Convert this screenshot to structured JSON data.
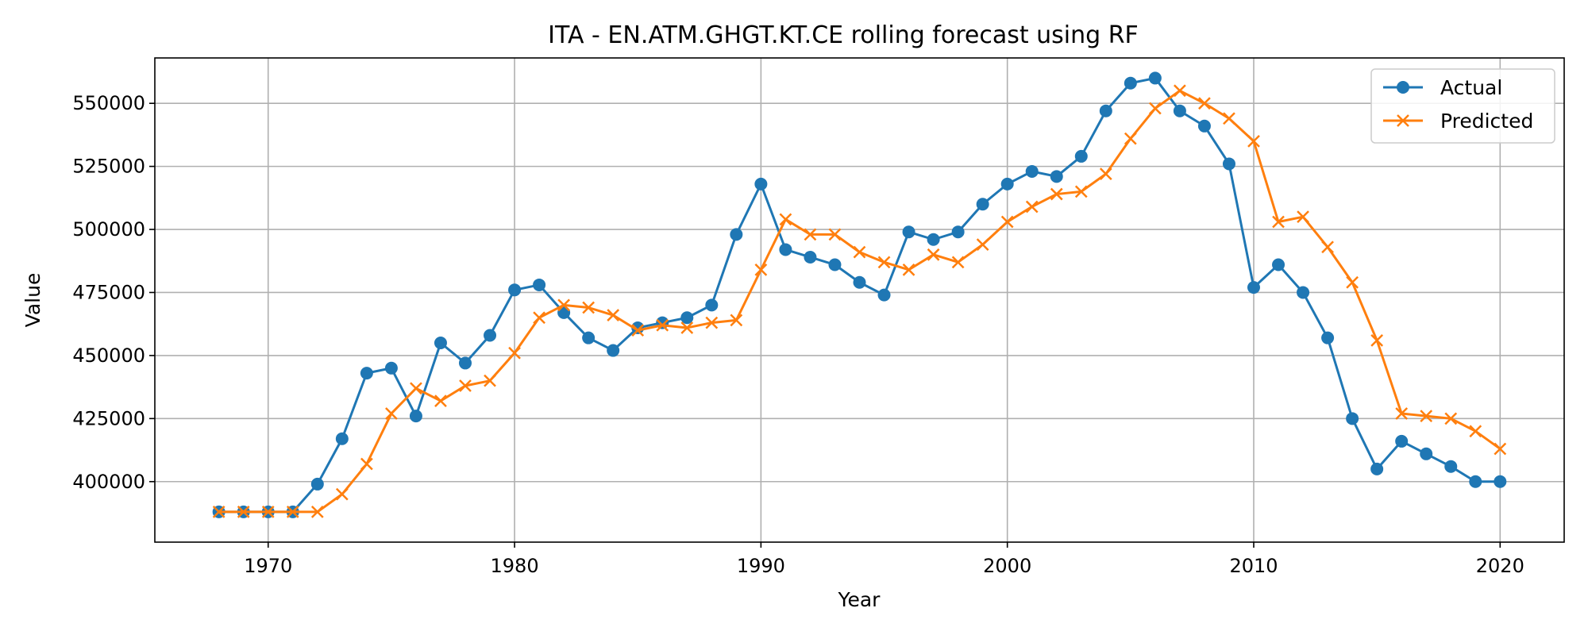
{
  "chart_data": {
    "type": "line",
    "title": "ITA - EN.ATM.GHGT.KT.CE rolling forecast using RF",
    "xlabel": "Year",
    "ylabel": "Value",
    "xlim": [
      1965.4,
      2022.6
    ],
    "ylim": [
      376000,
      568000
    ],
    "xticks": [
      1970,
      1980,
      1990,
      2000,
      2010,
      2020
    ],
    "yticks": [
      400000,
      425000,
      450000,
      475000,
      500000,
      525000,
      550000
    ],
    "grid": true,
    "legend_position": "top-right",
    "x": [
      1968,
      1969,
      1970,
      1971,
      1972,
      1973,
      1974,
      1975,
      1976,
      1977,
      1978,
      1979,
      1980,
      1981,
      1982,
      1983,
      1984,
      1985,
      1986,
      1987,
      1988,
      1989,
      1990,
      1991,
      1992,
      1993,
      1994,
      1995,
      1996,
      1997,
      1998,
      1999,
      2000,
      2001,
      2002,
      2003,
      2004,
      2005,
      2006,
      2007,
      2008,
      2009,
      2010,
      2011,
      2012,
      2013,
      2014,
      2015,
      2016,
      2017,
      2018,
      2019,
      2020
    ],
    "series": [
      {
        "name": "Actual",
        "color": "#1f77b4",
        "marker": "circle",
        "values": [
          388000,
          388000,
          388000,
          388000,
          399000,
          417000,
          443000,
          445000,
          426000,
          455000,
          447000,
          458000,
          476000,
          478000,
          467000,
          457000,
          452000,
          461000,
          463000,
          465000,
          470000,
          498000,
          518000,
          492000,
          489000,
          486000,
          479000,
          474000,
          499000,
          496000,
          499000,
          510000,
          518000,
          523000,
          521000,
          529000,
          547000,
          558000,
          560000,
          547000,
          541000,
          526000,
          477000,
          486000,
          475000,
          457000,
          425000,
          405000,
          416000,
          411000,
          406000,
          400000,
          400000
        ]
      },
      {
        "name": "Predicted",
        "color": "#ff7f0e",
        "marker": "x",
        "values": [
          388000,
          388000,
          388000,
          388000,
          388000,
          395000,
          407000,
          427000,
          437000,
          432000,
          438000,
          440000,
          451000,
          465000,
          470000,
          469000,
          466000,
          460000,
          462000,
          461000,
          463000,
          464000,
          484000,
          504000,
          498000,
          498000,
          491000,
          487000,
          484000,
          490000,
          487000,
          494000,
          503000,
          509000,
          514000,
          515000,
          522000,
          536000,
          548000,
          555000,
          550000,
          544000,
          535000,
          503000,
          505000,
          493000,
          479000,
          456000,
          427000,
          426000,
          425000,
          420000,
          413000
        ]
      }
    ]
  }
}
